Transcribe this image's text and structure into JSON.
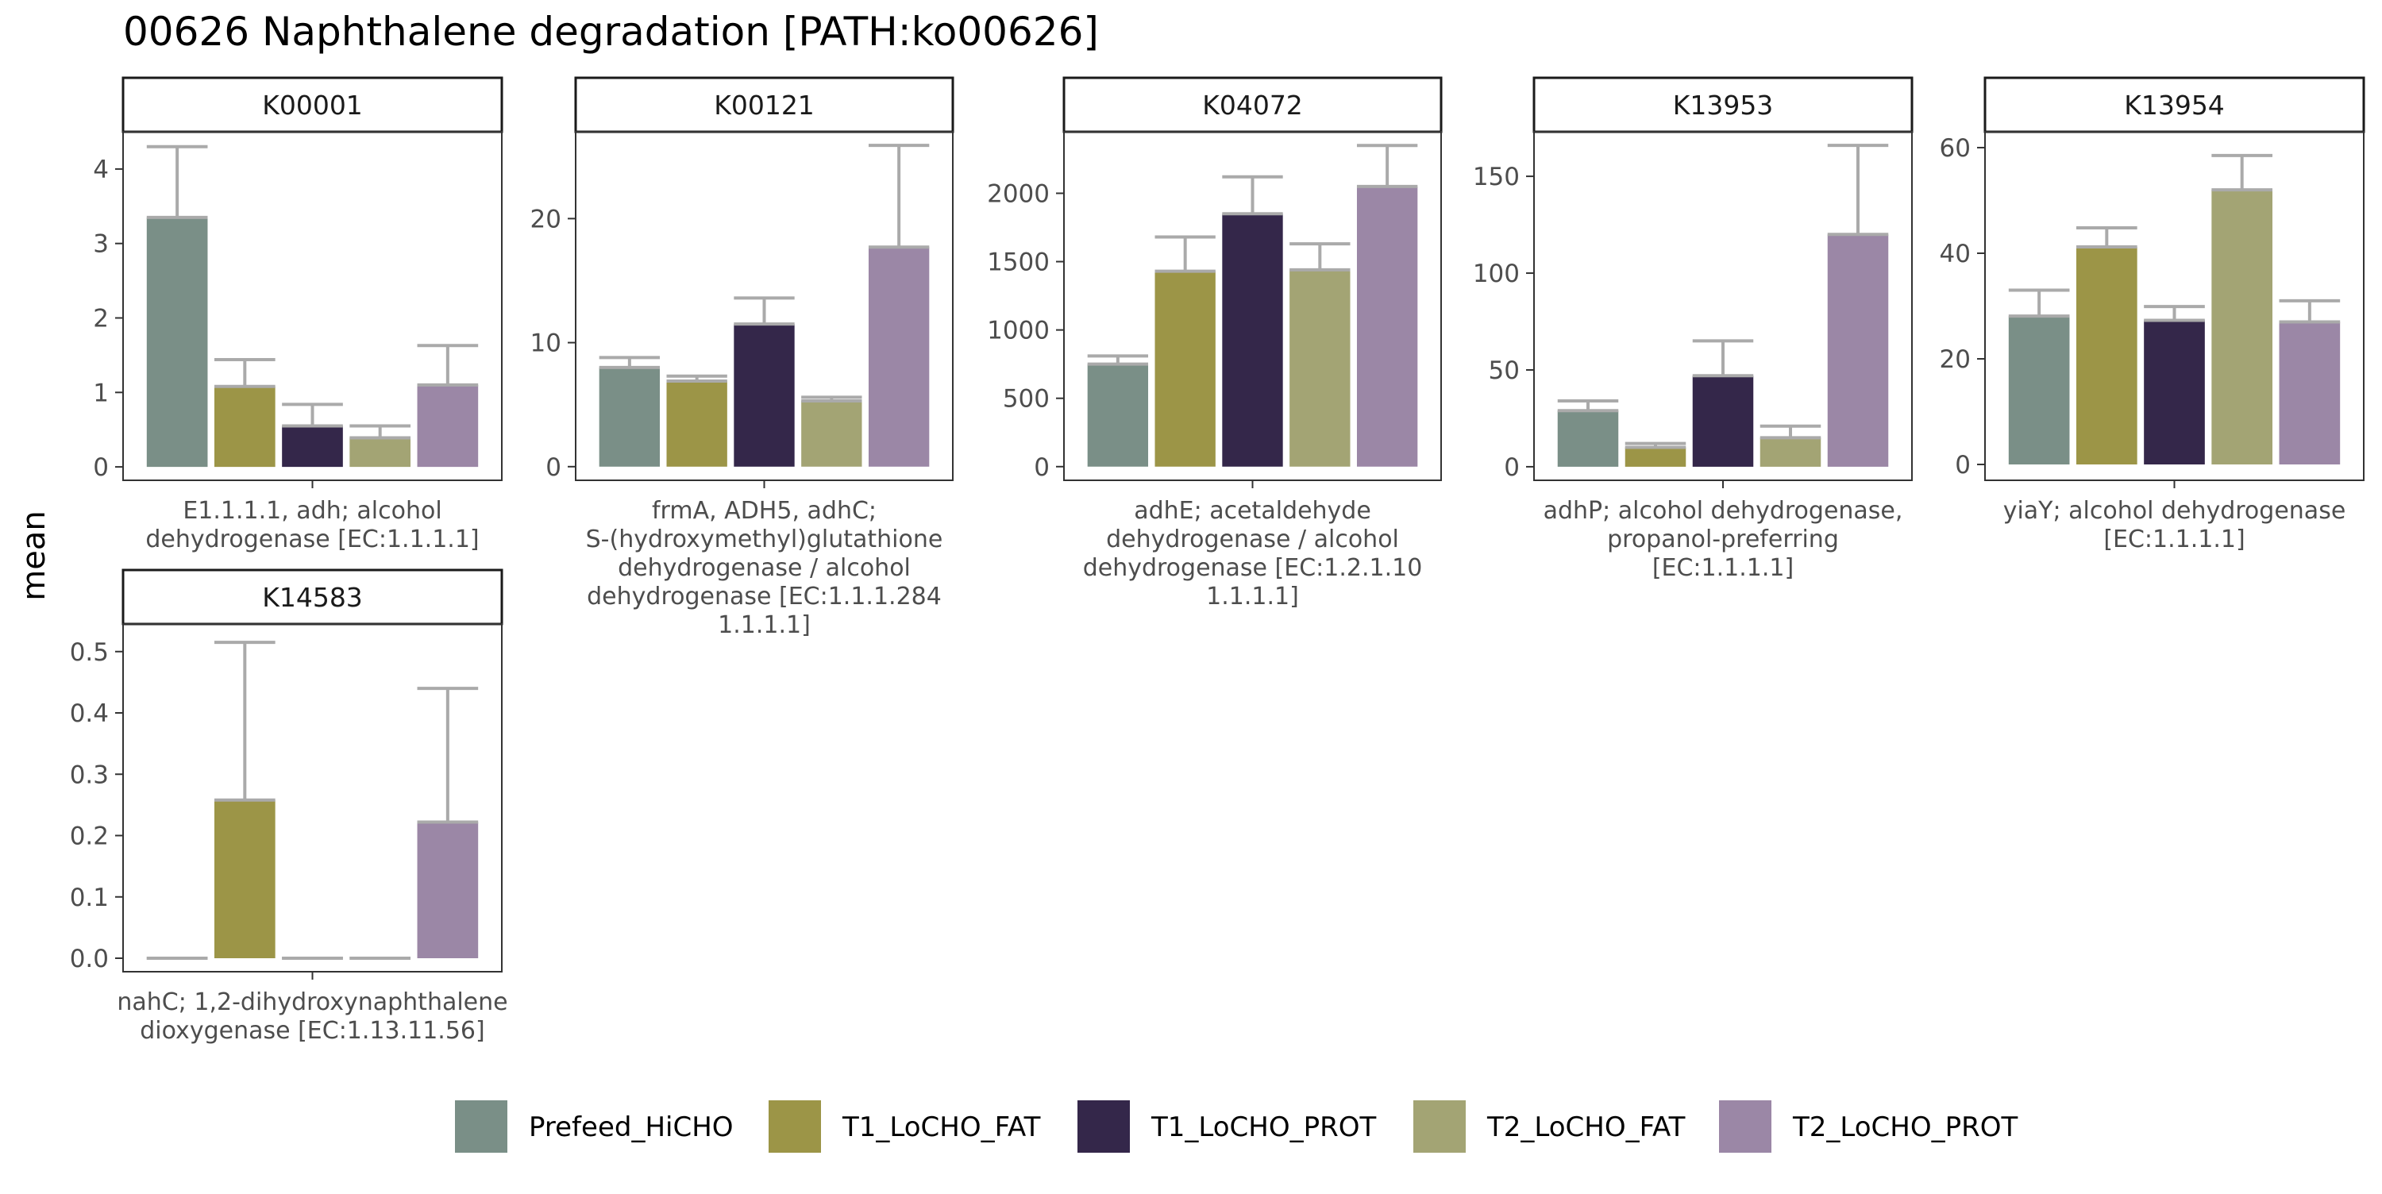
{
  "chart_data": {
    "type": "bar",
    "title": "00626 Naphthalene degradation [PATH:ko00626]",
    "ylabel": "mean",
    "xlabel": "",
    "grid": false,
    "legend_position": "bottom",
    "series": [
      {
        "name": "Prefeed_HiCHO",
        "color": "#7a8f87"
      },
      {
        "name": "T1_LoCHO_FAT",
        "color": "#9c9547"
      },
      {
        "name": "T1_LoCHO_PROT",
        "color": "#34274a"
      },
      {
        "name": "T2_LoCHO_FAT",
        "color": "#a3a474"
      },
      {
        "name": "T2_LoCHO_PROT",
        "color": "#9b87a6"
      }
    ],
    "error_bar_color": "#aaaaaa",
    "panels": [
      {
        "id": "K00001",
        "strip": "K00001",
        "category_label": [
          "E1.1.1.1, adh; alcohol",
          "dehydrogenase [EC:1.1.1.1]"
        ],
        "ylim": [
          -0.18,
          4.5
        ],
        "yticks": [
          0,
          1,
          2,
          3,
          4
        ],
        "values": [
          3.35,
          1.08,
          0.55,
          0.39,
          1.1
        ],
        "errors": [
          4.3,
          1.44,
          0.84,
          0.55,
          1.63
        ]
      },
      {
        "id": "K00121",
        "strip": "K00121",
        "category_label": [
          "frmA, ADH5, adhC;",
          "S-(hydroxymethyl)glutathione",
          "dehydrogenase / alcohol",
          "dehydrogenase [EC:1.1.1.284",
          "1.1.1.1]"
        ],
        "ylim": [
          -1.1,
          27.0
        ],
        "yticks": [
          0,
          10,
          20
        ],
        "values": [
          8.0,
          6.9,
          11.5,
          5.3,
          17.7
        ],
        "errors": [
          8.8,
          7.3,
          13.6,
          5.6,
          25.9
        ]
      },
      {
        "id": "K04072",
        "strip": "K04072",
        "category_label": [
          "adhE; acetaldehyde",
          "dehydrogenase / alcohol",
          "dehydrogenase [EC:1.2.1.10",
          "1.1.1.1]"
        ],
        "ylim": [
          -100,
          2450
        ],
        "yticks": [
          0,
          500,
          1000,
          1500,
          2000
        ],
        "values": [
          750,
          1430,
          1850,
          1440,
          2050
        ],
        "errors": [
          810,
          1680,
          2120,
          1630,
          2350
        ]
      },
      {
        "id": "K13953",
        "strip": "K13953",
        "category_label": [
          "adhP; alcohol dehydrogenase,",
          "propanol-preferring",
          "[EC:1.1.1.1]"
        ],
        "ylim": [
          -7,
          173
        ],
        "yticks": [
          0,
          50,
          100,
          150
        ],
        "values": [
          29,
          10,
          47,
          15,
          120
        ],
        "errors": [
          34,
          12,
          65,
          21,
          166
        ]
      },
      {
        "id": "K13954",
        "strip": "K13954",
        "category_label": [
          "yiaY; alcohol dehydrogenase",
          "[EC:1.1.1.1]"
        ],
        "ylim": [
          -3,
          63
        ],
        "yticks": [
          0,
          20,
          40,
          60
        ],
        "values": [
          28.1,
          41.2,
          27.3,
          52.0,
          27.0
        ],
        "errors": [
          33.0,
          44.8,
          29.9,
          58.5,
          31.0
        ]
      },
      {
        "id": "K14583",
        "strip": "K14583",
        "category_label": [
          "nahC; 1,2-dihydroxynaphthalene",
          "dioxygenase [EC:1.13.11.56]"
        ],
        "ylim": [
          -0.022,
          0.545
        ],
        "yticks": [
          0.0,
          0.1,
          0.2,
          0.3,
          0.4,
          0.5
        ],
        "ytick_labels": [
          "0.0",
          "0.1",
          "0.2",
          "0.3",
          "0.4",
          "0.5"
        ],
        "values": [
          0.0,
          0.258,
          0.0,
          0.0,
          0.222
        ],
        "errors": [
          0.0,
          0.515,
          0.0,
          0.0,
          0.44
        ]
      }
    ]
  }
}
